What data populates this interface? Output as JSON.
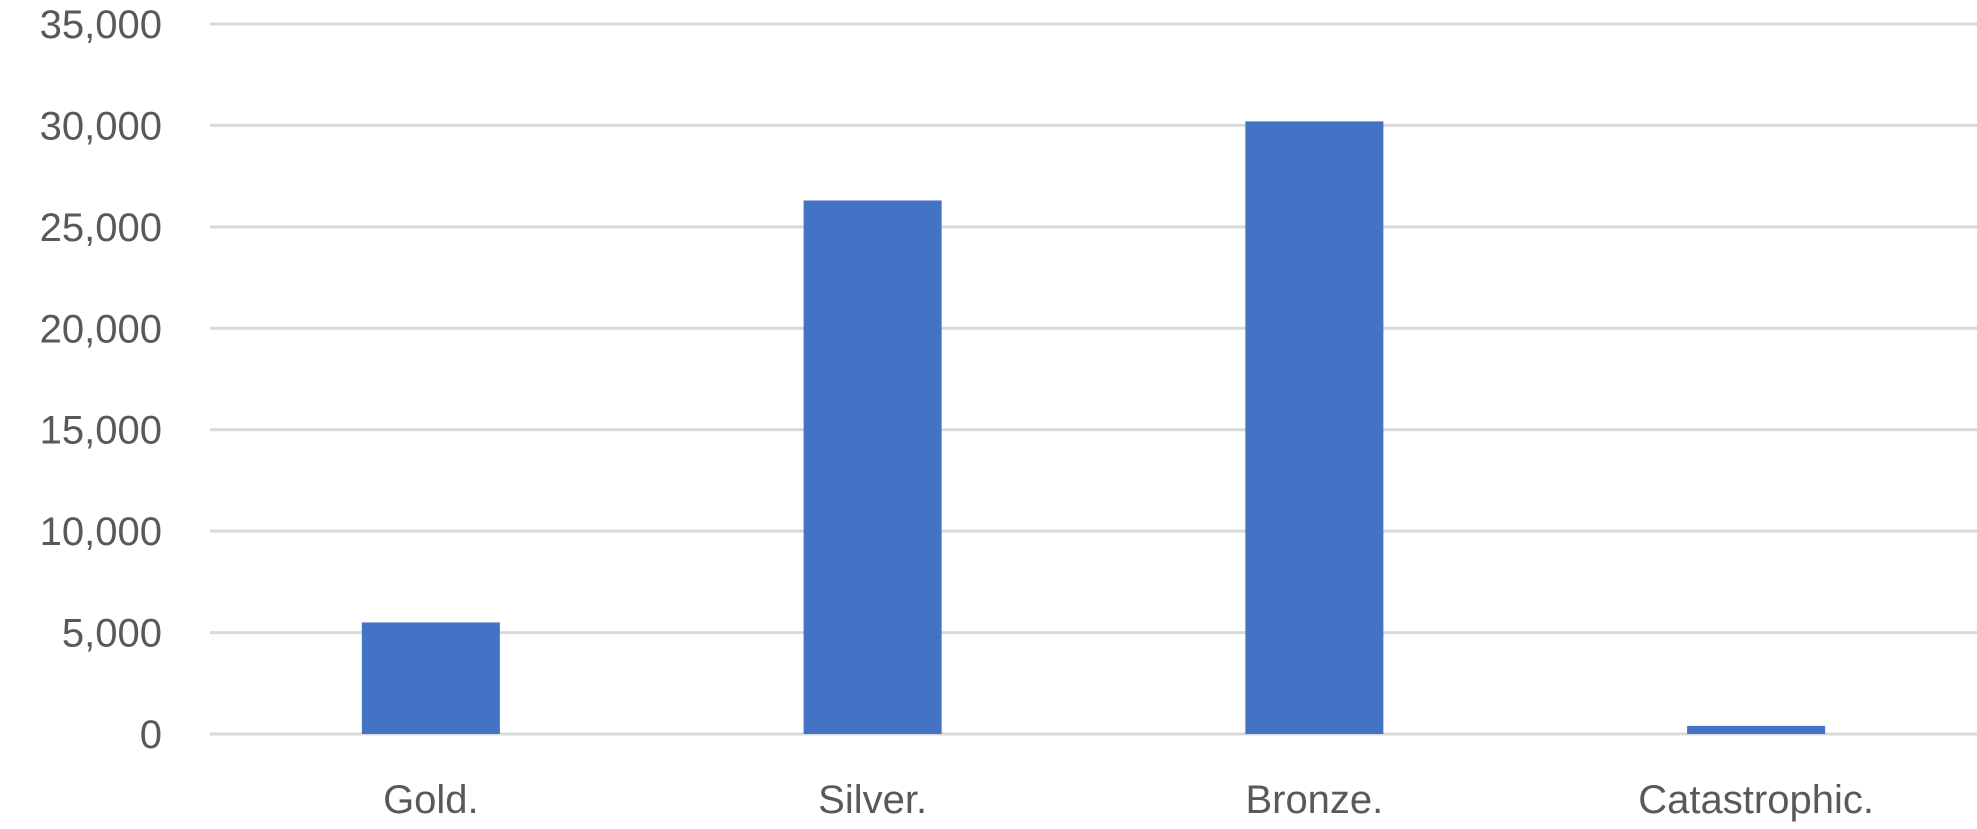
{
  "chart_data": {
    "type": "bar",
    "categories": [
      "Gold.",
      "Silver.",
      "Bronze.",
      "Catastrophic."
    ],
    "values": [
      5500,
      26300,
      30200,
      400
    ],
    "title": "",
    "xlabel": "",
    "ylabel": "",
    "ylim": [
      0,
      35000
    ],
    "yticks": [
      0,
      5000,
      10000,
      15000,
      20000,
      25000,
      30000,
      35000
    ],
    "ytick_labels": [
      "0",
      "5,000",
      "10,000",
      "15,000",
      "20,000",
      "25,000",
      "30,000",
      "35,000"
    ],
    "grid": true,
    "legend": "none",
    "bar_color": "#4472c4",
    "grid_color": "#d9d9d9"
  }
}
